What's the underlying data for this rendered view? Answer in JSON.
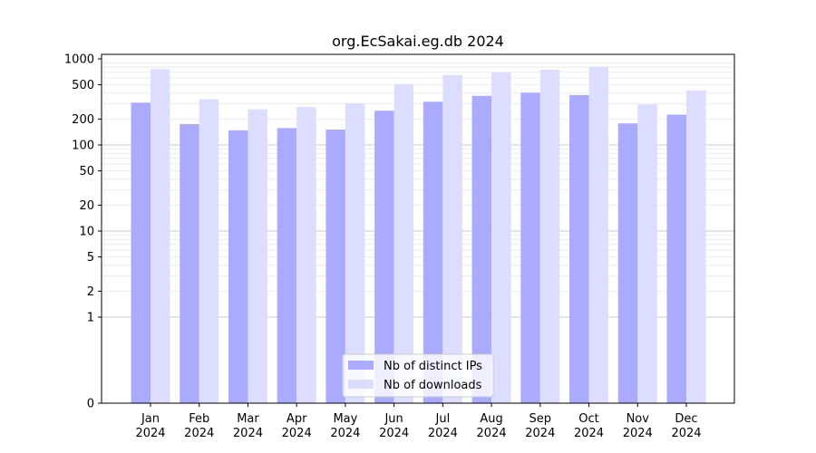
{
  "chart_data": {
    "type": "bar",
    "title": "org.EcSakai.eg.db 2024",
    "xlabel": "",
    "ylabel": "",
    "y_scale": "symlog",
    "ylim": [
      0,
      1000
    ],
    "y_ticks": [
      0,
      1,
      2,
      5,
      10,
      20,
      50,
      100,
      200,
      500,
      1000
    ],
    "grid": true,
    "legend_position": "lower center",
    "categories": [
      [
        "Jan",
        "2024"
      ],
      [
        "Feb",
        "2024"
      ],
      [
        "Mar",
        "2024"
      ],
      [
        "Apr",
        "2024"
      ],
      [
        "May",
        "2024"
      ],
      [
        "Jun",
        "2024"
      ],
      [
        "Jul",
        "2024"
      ],
      [
        "Aug",
        "2024"
      ],
      [
        "Sep",
        "2024"
      ],
      [
        "Oct",
        "2024"
      ],
      [
        "Nov",
        "2024"
      ],
      [
        "Dec",
        "2024"
      ]
    ],
    "series": [
      {
        "name": "Nb of distinct IPs",
        "color": "#aaaaff",
        "values": [
          310,
          175,
          148,
          157,
          151,
          250,
          318,
          372,
          405,
          380,
          178,
          225
        ]
      },
      {
        "name": "Nb of downloads",
        "color": "#ddddff",
        "values": [
          760,
          340,
          260,
          275,
          305,
          510,
          650,
          700,
          750,
          810,
          295,
          430
        ]
      }
    ]
  }
}
